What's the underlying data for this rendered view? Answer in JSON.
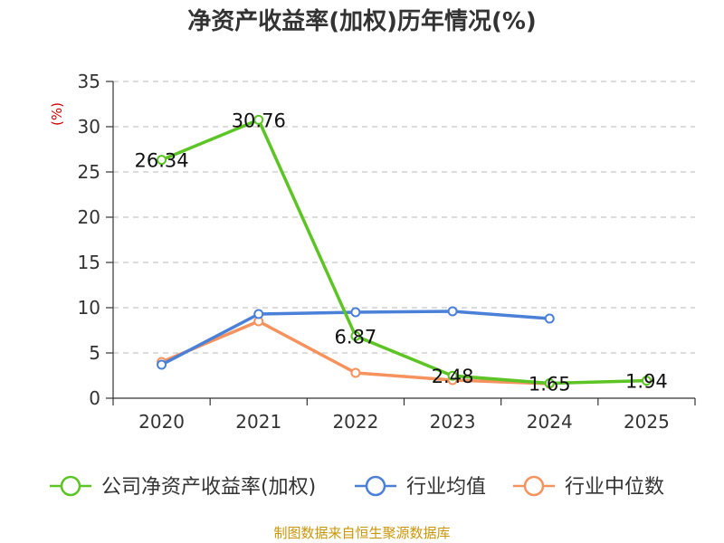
{
  "chart_data": {
    "type": "line",
    "title": "净资产收益率(加权)历年情况(%)",
    "ylabel": "(%)",
    "xlabel": "",
    "categories": [
      "2020",
      "2021",
      "2022",
      "2023",
      "2024",
      "2025"
    ],
    "ylim": [
      0,
      35
    ],
    "yticks": [
      0,
      5,
      10,
      15,
      20,
      25,
      30,
      35
    ],
    "grid": true,
    "legend_position": "bottom",
    "series": [
      {
        "name": "公司净资产收益率(加权)",
        "color": "#5cc424",
        "values": [
          26.34,
          30.76,
          6.87,
          2.48,
          1.65,
          1.94
        ],
        "labels": [
          "26.34",
          "30.76",
          "6.87",
          "2.48",
          "1.65",
          "1.94"
        ]
      },
      {
        "name": "行业均值",
        "color": "#4a80d8",
        "values": [
          3.7,
          9.3,
          9.5,
          9.6,
          8.8,
          null
        ]
      },
      {
        "name": "行业中位数",
        "color": "#f5925e",
        "values": [
          4.0,
          8.5,
          2.8,
          2.0,
          1.6,
          null
        ]
      }
    ],
    "source": "制图数据来自恒生聚源数据库"
  }
}
